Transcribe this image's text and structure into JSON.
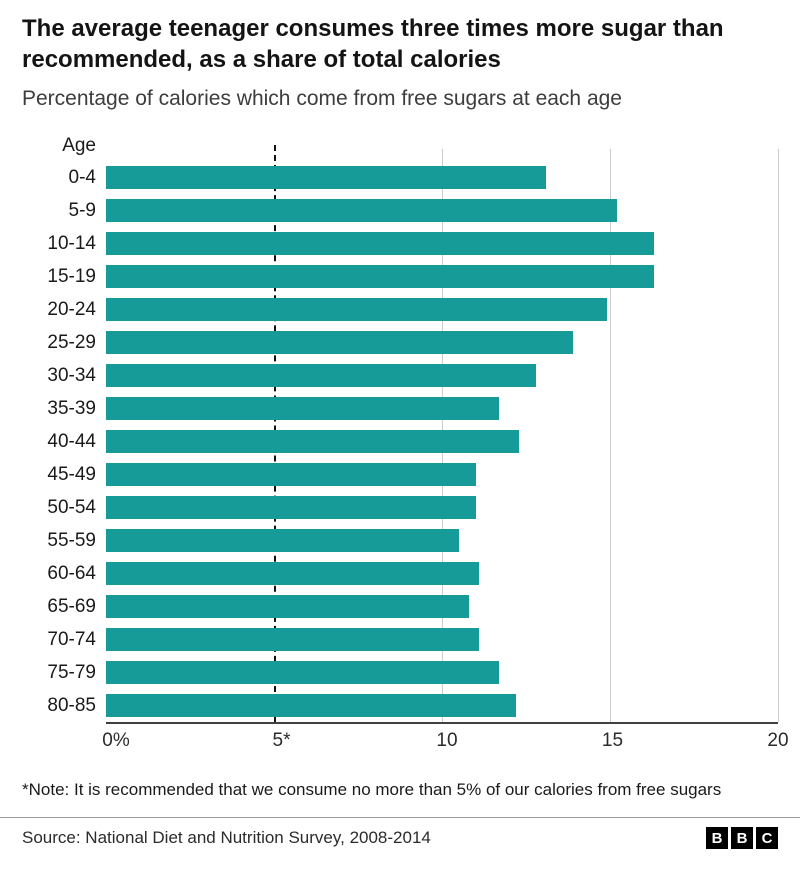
{
  "header": {
    "title": "The average teenager consumes three times more sugar than recommended, as a share of total calories",
    "subtitle": "Percentage of calories which come from free sugars at each age"
  },
  "chart_data": {
    "type": "bar",
    "orientation": "horizontal",
    "axis_label": "Age",
    "categories": [
      "0-4",
      "5-9",
      "10-14",
      "15-19",
      "20-24",
      "25-29",
      "30-34",
      "35-39",
      "40-44",
      "45-49",
      "50-54",
      "55-59",
      "60-64",
      "65-69",
      "70-74",
      "75-79",
      "80-85"
    ],
    "values": [
      13.1,
      15.2,
      16.3,
      16.3,
      14.9,
      13.9,
      12.8,
      11.7,
      12.3,
      11.0,
      11.0,
      10.5,
      11.1,
      10.8,
      11.1,
      11.7,
      12.2
    ],
    "xlim": [
      0,
      20
    ],
    "x_ticks": [
      {
        "value": 0,
        "label": "0%"
      },
      {
        "value": 5,
        "label": "5*"
      },
      {
        "value": 10,
        "label": "10"
      },
      {
        "value": 15,
        "label": "15"
      },
      {
        "value": 20,
        "label": "20"
      }
    ],
    "reference_line": {
      "value": 5,
      "style": "dashed"
    },
    "bar_color": "#169b98",
    "grid": true,
    "legend": "none"
  },
  "note": "*Note: It is recommended that we consume no more than 5% of our calories from free sugars",
  "footer": {
    "source": "Source: National Diet and Nutrition Survey, 2008-2014",
    "logo_letters": [
      "B",
      "B",
      "C"
    ]
  }
}
